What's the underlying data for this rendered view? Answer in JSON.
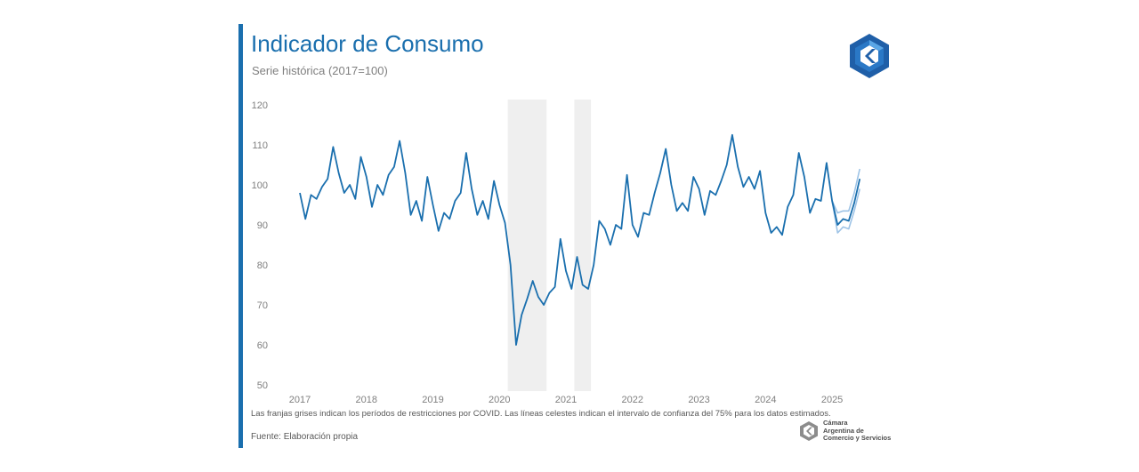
{
  "header": {
    "title": "Indicador de Consumo",
    "subtitle": "Serie histórica (2017=100)"
  },
  "footer": {
    "note": "Las franjas grises indican los períodos de restricciones por COVID. Las líneas celestes indican el intervalo de confianza del 75% para los datos estimados.",
    "source": "Fuente: Elaboración propia",
    "logo_text": [
      "Cámara",
      "Argentina de",
      "Comercio y Servicios"
    ]
  },
  "colors": {
    "accent": "#1a6fae",
    "series": "#1a6fae",
    "confidence": "#9dc3e6",
    "covid_band": "#efefef"
  },
  "chart_data": {
    "type": "line",
    "title": "Indicador de Consumo",
    "subtitle": "Serie histórica (2017=100)",
    "xlabel": "",
    "ylabel": "",
    "ylim": [
      50,
      120
    ],
    "yticks": [
      50,
      60,
      70,
      80,
      90,
      100,
      110,
      120
    ],
    "xticks": [
      "2017",
      "2018",
      "2019",
      "2020",
      "2021",
      "2022",
      "2023",
      "2024",
      "2025"
    ],
    "x_start": "2017-01",
    "grid": false,
    "series": [
      {
        "values": [
          98,
          91.5,
          97.5,
          96.5,
          99.5,
          101.5,
          109.5,
          103,
          98,
          100,
          96.5,
          107,
          102,
          94.5,
          100,
          97.5,
          102.5,
          104.5,
          111,
          103,
          92.5,
          96,
          91,
          102,
          95,
          88.5,
          93,
          91.5,
          96,
          98,
          108,
          99,
          92.5,
          96,
          91.5,
          101,
          95,
          90.5,
          80,
          60,
          67.5,
          71.5,
          76,
          72,
          70,
          73,
          74.5,
          86.5,
          78.5,
          74,
          82,
          75,
          74,
          80,
          91,
          89,
          85,
          90,
          89,
          102.5,
          90,
          87,
          93,
          92.5,
          98,
          103,
          109,
          100,
          93.5,
          95.5,
          93.5,
          102,
          99,
          92.5,
          98.5,
          97.5,
          101,
          105,
          112.5,
          104.5,
          99.5,
          102,
          99,
          103.5,
          93,
          88,
          89.5,
          87.5,
          94.5,
          97.5,
          108,
          102,
          93,
          96.5,
          96,
          105.5,
          96,
          90,
          91.5,
          91,
          95.5,
          101.5
        ]
      }
    ],
    "confidence_interval": {
      "level": "75%",
      "upper": [
        96,
        93,
        93.5,
        93.5,
        98,
        104
      ],
      "lower": [
        96,
        88,
        89.5,
        89,
        93.5,
        99
      ]
    },
    "covid_periods": [
      [
        "2020-03",
        "2020-09"
      ],
      [
        "2021-03",
        "2021-05"
      ]
    ]
  }
}
